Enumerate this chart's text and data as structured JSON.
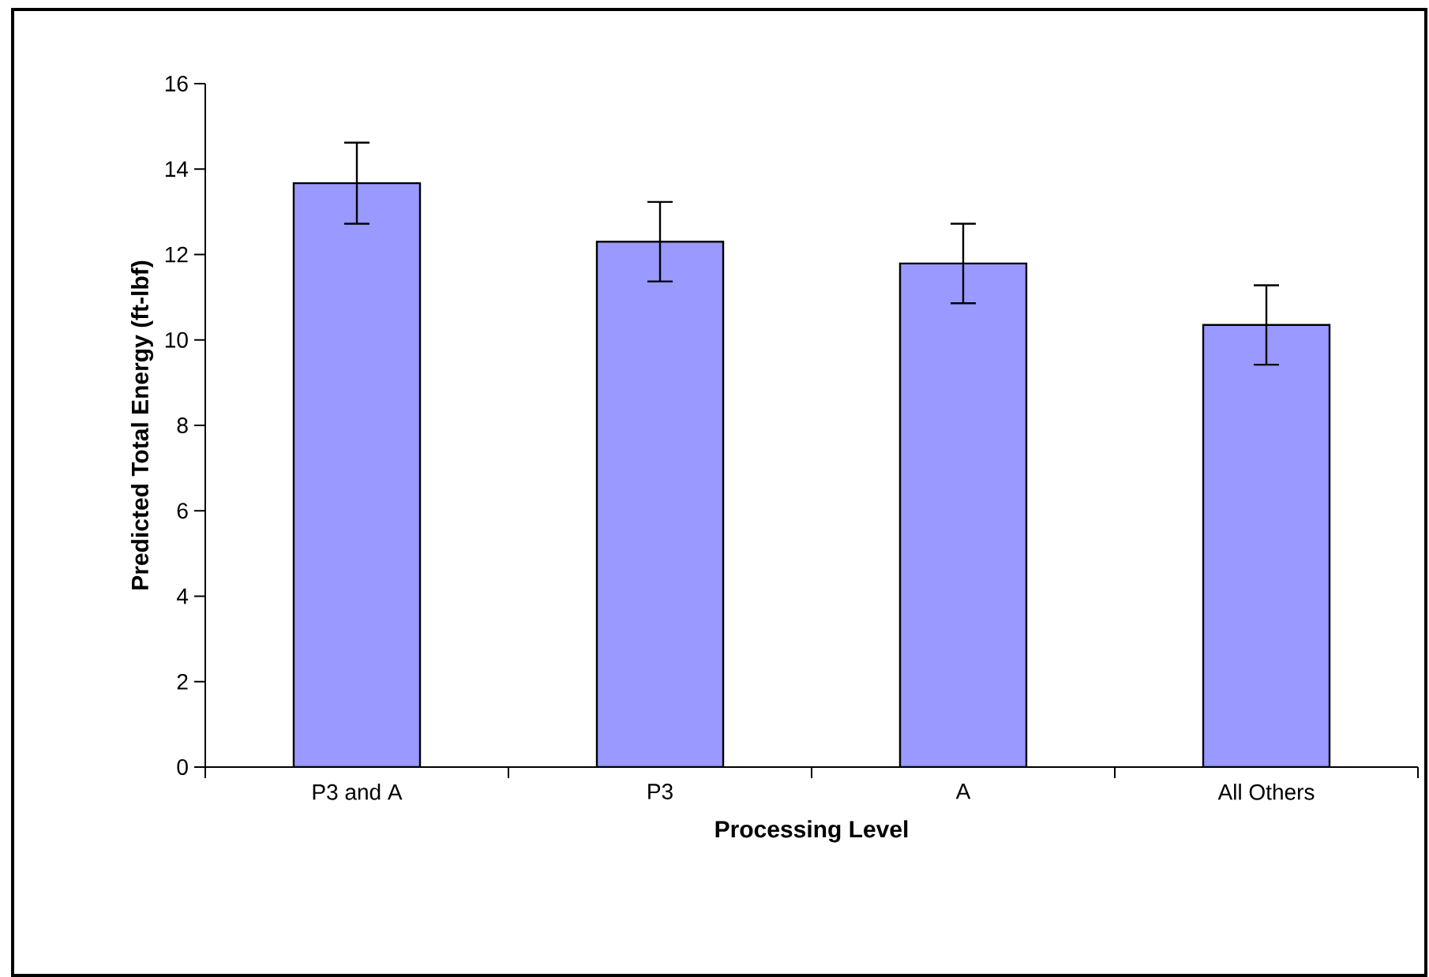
{
  "chart_data": {
    "type": "bar",
    "xlabel": "Processing Level",
    "ylabel": "Predicted Total Energy (ft-lbf)",
    "categories": [
      "P3 and A",
      "P3",
      "A",
      "All Others"
    ],
    "values": [
      13.67,
      12.3,
      11.79,
      10.35
    ],
    "errors": [
      0.95,
      0.93,
      0.93,
      0.93
    ],
    "color": "#9999ff",
    "ylim": [
      0,
      16
    ],
    "yticks": [
      0,
      2,
      4,
      6,
      8,
      10,
      12,
      14,
      16
    ],
    "grid": false
  }
}
